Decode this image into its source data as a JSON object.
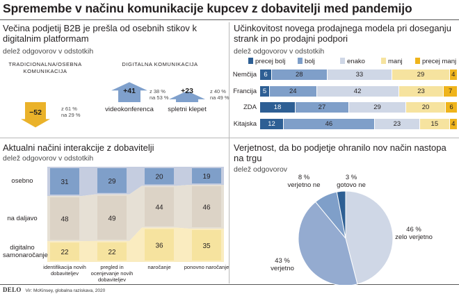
{
  "title": "Spremembe v načinu komunikacije kupcev z dobavitelji med pandemijo",
  "colors": {
    "dark_blue": "#2e5f94",
    "mid_blue": "#7f9fc9",
    "light_blue": "#cfd7e6",
    "light_yellow": "#f6e39f",
    "yellow": "#efb41b",
    "beige": "#dcd3c6",
    "arrow_blue": "#7fa0cc",
    "arrow_yellow": "#eab22a"
  },
  "footer": {
    "brand": "DELO",
    "source": "Vir: McKinsey, globalna raziskava, 2020"
  },
  "panels": {
    "top_left": {
      "title": "Večina podjetij B2B je prešla od osebnih stikov k digitalnim platformam",
      "subtitle": "delež odgovorov v odstotkih",
      "group_traditional": "TRADICIONALNA/OSEBNA KOMUNIKACIJA",
      "group_digital": "DIGITALNA KOMUNIKACIJA"
    },
    "top_right": {
      "title": "Učinkovitost novega prodajnega modela pri doseganju strank in po prodajni podpori",
      "subtitle": "delež odgovorov v odstotkih"
    },
    "bottom_left": {
      "title": "Aktualni načini interakcije z dobavitelji",
      "subtitle": "delež odgovorov v odstotkih"
    },
    "bottom_right": {
      "title": "Verjetnost, da bo podjetje ohranilo nov način nastopa na trgu",
      "subtitle": "delež odgovorov"
    }
  },
  "chart_data": [
    {
      "type": "bar",
      "chart": "arrows",
      "categories": [
        "",
        "videokonferenca",
        "spletni klepet"
      ],
      "values": [
        -52,
        41,
        23
      ],
      "value_labels": [
        "−52",
        "+41",
        "+23"
      ],
      "notes": [
        [
          "z 61 %",
          "na 29 %"
        ],
        [
          "z 38 %",
          "na 53 %"
        ],
        [
          "z 40 %",
          "na 49 %"
        ]
      ]
    },
    {
      "type": "bar",
      "chart": "stacked-horizontal",
      "legend": [
        "precej bolj",
        "bolj",
        "enako",
        "manj",
        "precej manj"
      ],
      "legend_placement": "top",
      "categories": [
        "Nemčija",
        "Francija",
        "ZDA",
        "Kitajska"
      ],
      "series": [
        {
          "name": "precej bolj",
          "values": [
            6,
            5,
            18,
            12
          ]
        },
        {
          "name": "bolj",
          "values": [
            28,
            24,
            27,
            46
          ]
        },
        {
          "name": "enako",
          "values": [
            33,
            42,
            29,
            23
          ]
        },
        {
          "name": "manj",
          "values": [
            29,
            23,
            20,
            15
          ]
        },
        {
          "name": "precej manj",
          "values": [
            4,
            7,
            6,
            4
          ]
        }
      ]
    },
    {
      "type": "bar",
      "chart": "stacked-vertical",
      "categories": [
        "identifikacija novih dobaviteljev",
        "pregled in ocenjevanje novih dobaviteljev",
        "naročanje",
        "ponovno naročanje"
      ],
      "series": [
        {
          "name": "osebno",
          "values": [
            31,
            29,
            20,
            19
          ]
        },
        {
          "name": "na daljavo",
          "values": [
            48,
            49,
            44,
            46
          ]
        },
        {
          "name": "digitalno samonaročanje",
          "values": [
            22,
            22,
            36,
            35
          ]
        }
      ]
    },
    {
      "type": "pie",
      "labels": [
        "zelo verjetno",
        "verjetno",
        "verjetno ne",
        "gotovo ne"
      ],
      "values": [
        46,
        43,
        8,
        3
      ],
      "value_labels": [
        "46 %",
        "43 %",
        "8 %",
        "3 %"
      ]
    }
  ]
}
